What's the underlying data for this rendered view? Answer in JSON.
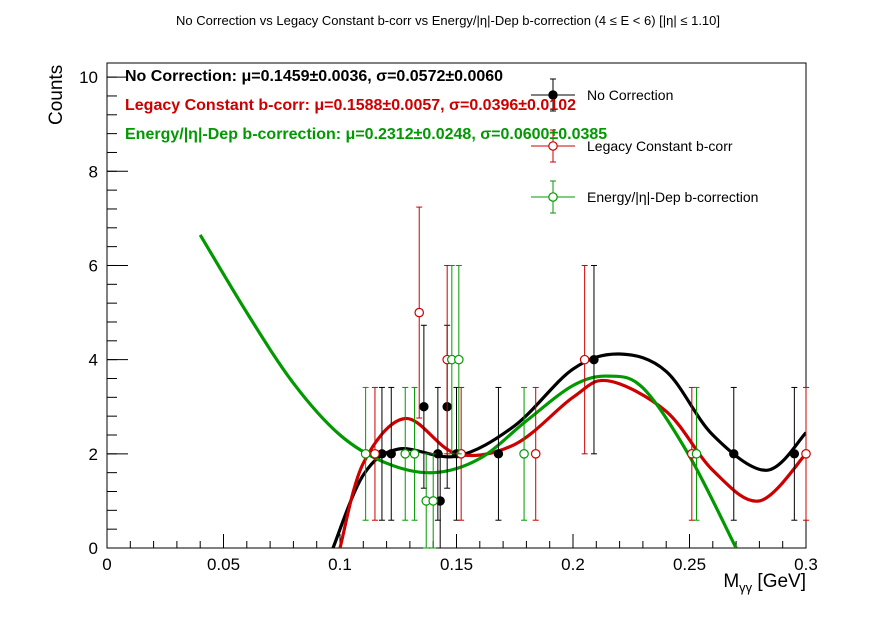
{
  "chart_data": {
    "type": "scatter",
    "title": "No Correction vs Legacy Constant b-corr vs Energy/|η|-Dep b-correction   (4 ≤ E < 6)   [|η| ≤ 1.10]",
    "xlabel": "M",
    "xlabel_sub": "γγ",
    "xlabel_unit": " [GeV]",
    "ylabel": "Counts",
    "xlim": [
      0,
      0.3
    ],
    "ylim": [
      0,
      10.3
    ],
    "x_ticks": [
      0,
      0.05,
      0.1,
      0.15,
      0.2,
      0.25,
      0.3
    ],
    "x_tick_labels": [
      "0",
      "0.05",
      "0.1",
      "0.15",
      "0.2",
      "0.25",
      "0.3"
    ],
    "y_ticks": [
      0,
      2,
      4,
      6,
      8,
      10
    ],
    "y_tick_labels": [
      "0",
      "2",
      "4",
      "6",
      "8",
      "10"
    ],
    "legend_position": "top-right",
    "series": [
      {
        "name": "No Correction",
        "color": "#000000",
        "marker": "filled-circle",
        "points": [
          {
            "x": 0.118,
            "y": 2,
            "err": 1.41
          },
          {
            "x": 0.122,
            "y": 2,
            "err": 1.41
          },
          {
            "x": 0.136,
            "y": 3,
            "err": 1.73
          },
          {
            "x": 0.142,
            "y": 2,
            "err": 1.41
          },
          {
            "x": 0.143,
            "y": 1,
            "err": 1.0
          },
          {
            "x": 0.146,
            "y": 3,
            "err": 1.73
          },
          {
            "x": 0.15,
            "y": 2,
            "err": 1.41
          },
          {
            "x": 0.168,
            "y": 2,
            "err": 1.41
          },
          {
            "x": 0.209,
            "y": 4,
            "err": 2.0
          },
          {
            "x": 0.269,
            "y": 2,
            "err": 1.41
          },
          {
            "x": 0.295,
            "y": 2,
            "err": 1.41
          }
        ],
        "fit": {
          "x": [
            0.097,
            0.11,
            0.125,
            0.15,
            0.175,
            0.2,
            0.22,
            0.24,
            0.26,
            0.283,
            0.3
          ],
          "y": [
            0,
            1.55,
            2.1,
            1.95,
            2.6,
            3.8,
            4.12,
            3.75,
            2.4,
            1.65,
            2.45
          ]
        }
      },
      {
        "name": "Legacy Constant b-corr",
        "color": "#cc0000",
        "marker": "open-circle",
        "points": [
          {
            "x": 0.115,
            "y": 2,
            "err": 1.41
          },
          {
            "x": 0.134,
            "y": 5,
            "err": 2.24
          },
          {
            "x": 0.146,
            "y": 4,
            "err": 2.0
          },
          {
            "x": 0.152,
            "y": 2,
            "err": 1.41
          },
          {
            "x": 0.184,
            "y": 2,
            "err": 1.41
          },
          {
            "x": 0.205,
            "y": 4,
            "err": 2.0
          },
          {
            "x": 0.251,
            "y": 2,
            "err": 1.41
          },
          {
            "x": 0.3,
            "y": 2,
            "err": 1.41
          }
        ],
        "fit": {
          "x": [
            0.1,
            0.11,
            0.128,
            0.15,
            0.175,
            0.2,
            0.215,
            0.24,
            0.26,
            0.28,
            0.3
          ],
          "y": [
            0,
            1.8,
            2.75,
            2.0,
            2.2,
            3.2,
            3.55,
            2.9,
            1.65,
            1.0,
            2.0
          ]
        }
      },
      {
        "name": "Energy/|η|-Dep b-correction",
        "color": "#009900",
        "marker": "open-circle",
        "points": [
          {
            "x": 0.111,
            "y": 2,
            "err": 1.41
          },
          {
            "x": 0.128,
            "y": 2,
            "err": 1.41
          },
          {
            "x": 0.132,
            "y": 2,
            "err": 1.41
          },
          {
            "x": 0.137,
            "y": 1,
            "err": 1.0
          },
          {
            "x": 0.14,
            "y": 1,
            "err": 1.0
          },
          {
            "x": 0.148,
            "y": 4,
            "err": 2.0
          },
          {
            "x": 0.151,
            "y": 4,
            "err": 2.0
          },
          {
            "x": 0.179,
            "y": 2,
            "err": 1.41
          },
          {
            "x": 0.253,
            "y": 2,
            "err": 1.41
          }
        ],
        "fit": {
          "x": [
            0.04,
            0.06,
            0.08,
            0.1,
            0.12,
            0.14,
            0.16,
            0.18,
            0.2,
            0.215,
            0.23,
            0.25,
            0.27
          ],
          "y": [
            6.65,
            5.0,
            3.5,
            2.4,
            1.8,
            1.6,
            1.9,
            2.7,
            3.45,
            3.65,
            3.4,
            1.95,
            0
          ]
        }
      }
    ],
    "fit_results": [
      {
        "label": "No Correction:",
        "text": "μ=0.1459±0.0036, σ=0.0572±0.0060",
        "color": "#000000"
      },
      {
        "label": "Legacy Constant b-corr:",
        "text": "μ=0.1588±0.0057, σ=0.0396±0.0102",
        "color": "#cc0000"
      },
      {
        "label": "Energy/|η|-Dep b-correction:",
        "text": "μ=0.2312±0.0248, σ=0.0600±0.0385",
        "color": "#009900"
      }
    ]
  }
}
